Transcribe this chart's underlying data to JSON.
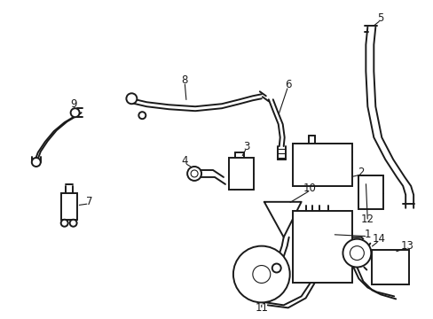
{
  "background_color": "#ffffff",
  "line_color": "#1a1a1a",
  "label_fontsize": 8.5,
  "fig_width": 4.89,
  "fig_height": 3.6,
  "dpi": 100
}
